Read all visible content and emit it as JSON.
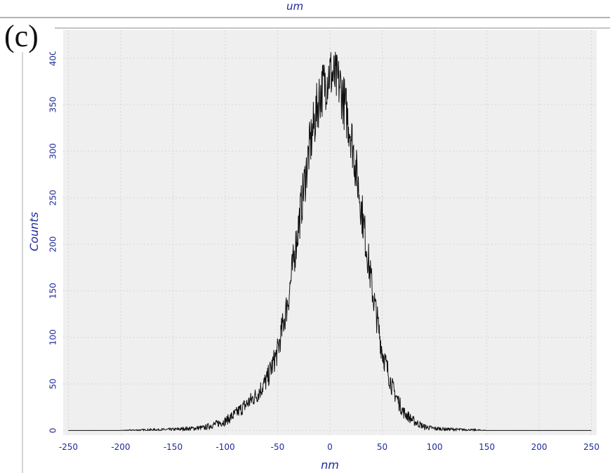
{
  "panel_label": "(c)",
  "top_axis_unit": "um",
  "colors": {
    "axis_text": "#1f2a9a",
    "plot_bg": "#efefef",
    "grid": "#d6d6d6",
    "series": "#111111"
  },
  "chart_data": {
    "type": "line",
    "title": "",
    "xlabel": "nm",
    "ylabel": "Counts",
    "xlim": [
      -255,
      255
    ],
    "ylim": [
      -5,
      430
    ],
    "x_ticks": [
      -250,
      -200,
      -150,
      -100,
      -50,
      0,
      50,
      100,
      150,
      200,
      250
    ],
    "y_ticks": [
      0,
      50,
      100,
      150,
      200,
      250,
      300,
      350,
      400
    ],
    "grid": true,
    "series": [
      {
        "x": [
          -250,
          -200,
          -150,
          -120,
          -100,
          -90,
          -80,
          -70,
          -60,
          -50,
          -40,
          -30,
          -20,
          -10,
          0,
          10,
          20,
          30,
          40,
          50,
          60,
          70,
          80,
          90,
          100,
          120,
          150,
          200,
          250
        ],
        "values": [
          0,
          0,
          1,
          3,
          10,
          18,
          28,
          38,
          55,
          85,
          140,
          220,
          300,
          360,
          385,
          370,
          320,
          240,
          155,
          85,
          45,
          20,
          10,
          4,
          2,
          1,
          0,
          0,
          0
        ]
      }
    ]
  }
}
